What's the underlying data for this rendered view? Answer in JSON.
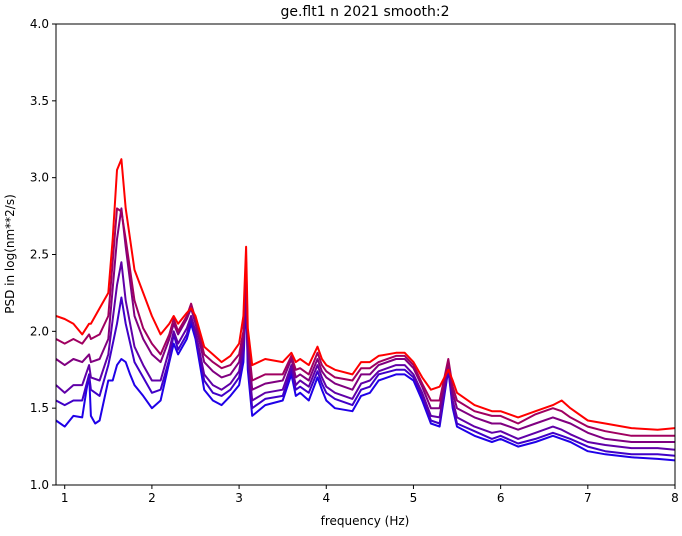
{
  "chart_data": {
    "type": "line",
    "title": "ge.flt1 n 2021 smooth:2",
    "xlabel": "frequency (Hz)",
    "ylabel": "PSD in log(nm**2/s)",
    "xlim": [
      0.9,
      8.0
    ],
    "ylim": [
      1.0,
      4.0
    ],
    "xticks": [
      1,
      2,
      3,
      4,
      5,
      6,
      7,
      8
    ],
    "yticks": [
      1.0,
      1.5,
      2.0,
      2.5,
      3.0,
      3.5,
      4.0
    ],
    "xtick_labels": [
      "1",
      "2",
      "3",
      "4",
      "5",
      "6",
      "7",
      "8"
    ],
    "ytick_labels": [
      "1.0",
      "1.5",
      "2.0",
      "2.5",
      "3.0",
      "3.5",
      "4.0"
    ],
    "grid": false,
    "legend": false,
    "series": [
      {
        "color": "#1f00e8",
        "x": [
          0.9,
          1.0,
          1.1,
          1.2,
          1.25,
          1.28,
          1.3,
          1.35,
          1.4,
          1.5,
          1.55,
          1.6,
          1.65,
          1.7,
          1.75,
          1.8,
          1.9,
          2.0,
          2.1,
          2.2,
          2.25,
          2.3,
          2.4,
          2.45,
          2.5,
          2.6,
          2.7,
          2.8,
          2.9,
          3.0,
          3.05,
          3.08,
          3.1,
          3.15,
          3.3,
          3.5,
          3.6,
          3.65,
          3.7,
          3.8,
          3.9,
          3.95,
          4.0,
          4.1,
          4.3,
          4.4,
          4.5,
          4.6,
          4.8,
          4.9,
          5.0,
          5.1,
          5.2,
          5.3,
          5.4,
          5.45,
          5.5,
          5.7,
          5.9,
          6.0,
          6.2,
          6.4,
          6.6,
          6.7,
          6.8,
          7.0,
          7.2,
          7.5,
          7.8,
          8.0
        ],
        "y": [
          1.42,
          1.38,
          1.45,
          1.44,
          1.62,
          1.72,
          1.45,
          1.4,
          1.42,
          1.68,
          1.68,
          1.78,
          1.82,
          1.8,
          1.72,
          1.65,
          1.58,
          1.5,
          1.55,
          1.8,
          1.92,
          1.85,
          1.95,
          2.05,
          1.95,
          1.62,
          1.55,
          1.52,
          1.58,
          1.65,
          1.8,
          2.22,
          1.75,
          1.45,
          1.52,
          1.55,
          1.72,
          1.58,
          1.6,
          1.55,
          1.7,
          1.62,
          1.55,
          1.5,
          1.48,
          1.58,
          1.6,
          1.68,
          1.72,
          1.72,
          1.68,
          1.55,
          1.4,
          1.38,
          1.75,
          1.5,
          1.38,
          1.32,
          1.28,
          1.3,
          1.25,
          1.28,
          1.32,
          1.3,
          1.28,
          1.22,
          1.2,
          1.18,
          1.17,
          1.16
        ]
      },
      {
        "color": "#4000c8",
        "x": [
          0.9,
          1.0,
          1.1,
          1.2,
          1.28,
          1.3,
          1.4,
          1.5,
          1.6,
          1.65,
          1.7,
          1.8,
          1.9,
          2.0,
          2.1,
          2.2,
          2.25,
          2.3,
          2.4,
          2.45,
          2.5,
          2.6,
          2.7,
          2.8,
          2.9,
          3.0,
          3.05,
          3.08,
          3.1,
          3.15,
          3.3,
          3.5,
          3.6,
          3.65,
          3.7,
          3.8,
          3.9,
          3.95,
          4.0,
          4.1,
          4.3,
          4.4,
          4.5,
          4.6,
          4.8,
          4.9,
          5.0,
          5.1,
          5.2,
          5.3,
          5.4,
          5.45,
          5.5,
          5.7,
          5.9,
          6.0,
          6.2,
          6.4,
          6.6,
          6.7,
          6.8,
          7.0,
          7.2,
          7.5,
          7.8,
          8.0
        ],
        "y": [
          1.55,
          1.52,
          1.55,
          1.55,
          1.72,
          1.62,
          1.58,
          1.78,
          2.05,
          2.22,
          2.05,
          1.8,
          1.7,
          1.6,
          1.62,
          1.82,
          1.98,
          1.88,
          1.98,
          2.08,
          1.98,
          1.68,
          1.6,
          1.58,
          1.62,
          1.7,
          1.85,
          2.25,
          1.8,
          1.5,
          1.56,
          1.58,
          1.75,
          1.62,
          1.64,
          1.6,
          1.74,
          1.66,
          1.6,
          1.56,
          1.52,
          1.62,
          1.64,
          1.72,
          1.75,
          1.75,
          1.7,
          1.58,
          1.42,
          1.4,
          1.76,
          1.52,
          1.4,
          1.35,
          1.3,
          1.32,
          1.27,
          1.3,
          1.34,
          1.32,
          1.3,
          1.25,
          1.22,
          1.2,
          1.2,
          1.19
        ]
      },
      {
        "color": "#6000a8",
        "x": [
          0.9,
          1.0,
          1.1,
          1.2,
          1.28,
          1.3,
          1.4,
          1.5,
          1.6,
          1.65,
          1.7,
          1.8,
          1.9,
          2.0,
          2.1,
          2.2,
          2.25,
          2.3,
          2.4,
          2.45,
          2.5,
          2.6,
          2.7,
          2.8,
          2.9,
          3.0,
          3.05,
          3.08,
          3.1,
          3.15,
          3.3,
          3.5,
          3.6,
          3.65,
          3.7,
          3.8,
          3.9,
          3.95,
          4.0,
          4.1,
          4.3,
          4.4,
          4.5,
          4.6,
          4.8,
          4.9,
          5.0,
          5.1,
          5.2,
          5.3,
          5.4,
          5.45,
          5.5,
          5.7,
          5.9,
          6.0,
          6.2,
          6.4,
          6.6,
          6.7,
          6.8,
          7.0,
          7.2,
          7.5,
          7.8,
          8.0
        ],
        "y": [
          1.65,
          1.6,
          1.65,
          1.65,
          1.78,
          1.7,
          1.68,
          1.85,
          2.3,
          2.45,
          2.2,
          1.9,
          1.78,
          1.68,
          1.68,
          1.88,
          2.0,
          1.92,
          2.02,
          2.1,
          2.0,
          1.72,
          1.65,
          1.62,
          1.66,
          1.74,
          1.9,
          2.3,
          1.85,
          1.55,
          1.6,
          1.62,
          1.78,
          1.65,
          1.68,
          1.64,
          1.78,
          1.7,
          1.64,
          1.6,
          1.56,
          1.66,
          1.68,
          1.74,
          1.78,
          1.78,
          1.72,
          1.6,
          1.45,
          1.44,
          1.78,
          1.55,
          1.44,
          1.38,
          1.34,
          1.35,
          1.3,
          1.34,
          1.38,
          1.36,
          1.33,
          1.28,
          1.26,
          1.24,
          1.24,
          1.23
        ]
      },
      {
        "color": "#800080",
        "x": [
          0.9,
          1.0,
          1.1,
          1.2,
          1.28,
          1.3,
          1.4,
          1.5,
          1.6,
          1.65,
          1.7,
          1.8,
          1.9,
          2.0,
          2.1,
          2.2,
          2.25,
          2.3,
          2.4,
          2.45,
          2.5,
          2.6,
          2.7,
          2.8,
          2.9,
          3.0,
          3.05,
          3.08,
          3.1,
          3.15,
          3.3,
          3.5,
          3.6,
          3.65,
          3.7,
          3.8,
          3.9,
          3.95,
          4.0,
          4.1,
          4.3,
          4.4,
          4.5,
          4.6,
          4.8,
          4.9,
          5.0,
          5.1,
          5.2,
          5.3,
          5.4,
          5.45,
          5.5,
          5.7,
          5.9,
          6.0,
          6.2,
          6.4,
          6.6,
          6.7,
          6.8,
          7.0,
          7.2,
          7.5,
          7.8,
          8.0
        ],
        "y": [
          1.82,
          1.78,
          1.82,
          1.8,
          1.85,
          1.8,
          1.82,
          1.95,
          2.6,
          2.8,
          2.55,
          2.1,
          1.95,
          1.85,
          1.8,
          1.95,
          2.05,
          1.98,
          2.08,
          2.15,
          2.05,
          1.8,
          1.74,
          1.7,
          1.72,
          1.8,
          1.95,
          2.38,
          1.92,
          1.62,
          1.66,
          1.68,
          1.82,
          1.7,
          1.72,
          1.68,
          1.82,
          1.74,
          1.7,
          1.66,
          1.62,
          1.72,
          1.72,
          1.78,
          1.82,
          1.82,
          1.76,
          1.64,
          1.5,
          1.5,
          1.8,
          1.6,
          1.5,
          1.44,
          1.4,
          1.4,
          1.36,
          1.4,
          1.44,
          1.42,
          1.4,
          1.34,
          1.3,
          1.28,
          1.28,
          1.28
        ]
      },
      {
        "color": "#a00060",
        "x": [
          0.9,
          1.0,
          1.1,
          1.2,
          1.28,
          1.3,
          1.4,
          1.5,
          1.6,
          1.65,
          1.7,
          1.8,
          1.9,
          2.0,
          2.1,
          2.2,
          2.25,
          2.3,
          2.4,
          2.45,
          2.5,
          2.6,
          2.7,
          2.8,
          2.9,
          3.0,
          3.05,
          3.08,
          3.1,
          3.15,
          3.3,
          3.5,
          3.6,
          3.65,
          3.7,
          3.8,
          3.9,
          3.95,
          4.0,
          4.1,
          4.3,
          4.4,
          4.5,
          4.6,
          4.8,
          4.9,
          5.0,
          5.1,
          5.2,
          5.3,
          5.4,
          5.45,
          5.5,
          5.7,
          5.9,
          6.0,
          6.2,
          6.4,
          6.6,
          6.7,
          6.8,
          7.0,
          7.2,
          7.5,
          7.8,
          8.0
        ],
        "y": [
          1.95,
          1.92,
          1.95,
          1.92,
          1.98,
          1.95,
          1.98,
          2.1,
          2.8,
          2.78,
          2.6,
          2.2,
          2.02,
          1.92,
          1.85,
          1.98,
          2.08,
          2.0,
          2.1,
          2.18,
          2.08,
          1.85,
          1.8,
          1.76,
          1.78,
          1.85,
          2.0,
          2.45,
          1.95,
          1.68,
          1.72,
          1.72,
          1.84,
          1.75,
          1.76,
          1.72,
          1.86,
          1.78,
          1.74,
          1.7,
          1.68,
          1.76,
          1.76,
          1.8,
          1.84,
          1.84,
          1.78,
          1.66,
          1.55,
          1.55,
          1.82,
          1.64,
          1.55,
          1.48,
          1.45,
          1.45,
          1.4,
          1.46,
          1.5,
          1.48,
          1.44,
          1.38,
          1.35,
          1.32,
          1.32,
          1.32
        ]
      },
      {
        "color": "#ff0000",
        "x": [
          0.9,
          1.0,
          1.1,
          1.2,
          1.28,
          1.3,
          1.4,
          1.5,
          1.55,
          1.6,
          1.65,
          1.7,
          1.8,
          1.9,
          2.0,
          2.1,
          2.2,
          2.25,
          2.3,
          2.4,
          2.45,
          2.5,
          2.6,
          2.7,
          2.8,
          2.9,
          3.0,
          3.05,
          3.08,
          3.1,
          3.15,
          3.3,
          3.5,
          3.6,
          3.65,
          3.7,
          3.8,
          3.9,
          3.95,
          4.0,
          4.1,
          4.3,
          4.4,
          4.5,
          4.6,
          4.8,
          4.9,
          5.0,
          5.1,
          5.2,
          5.3,
          5.4,
          5.45,
          5.5,
          5.7,
          5.9,
          6.0,
          6.2,
          6.4,
          6.6,
          6.7,
          6.8,
          7.0,
          7.2,
          7.5,
          7.8,
          8.0
        ],
        "y": [
          2.1,
          2.08,
          2.05,
          1.98,
          2.05,
          2.05,
          2.15,
          2.25,
          2.6,
          3.05,
          3.12,
          2.8,
          2.4,
          2.25,
          2.1,
          1.98,
          2.05,
          2.1,
          2.05,
          2.12,
          2.15,
          2.1,
          1.9,
          1.85,
          1.8,
          1.84,
          1.92,
          2.1,
          2.55,
          2.02,
          1.78,
          1.82,
          1.8,
          1.86,
          1.8,
          1.82,
          1.78,
          1.9,
          1.82,
          1.78,
          1.75,
          1.72,
          1.8,
          1.8,
          1.84,
          1.86,
          1.86,
          1.8,
          1.7,
          1.62,
          1.64,
          1.75,
          1.68,
          1.6,
          1.52,
          1.48,
          1.48,
          1.44,
          1.48,
          1.52,
          1.55,
          1.5,
          1.42,
          1.4,
          1.37,
          1.36,
          1.37
        ]
      }
    ]
  }
}
